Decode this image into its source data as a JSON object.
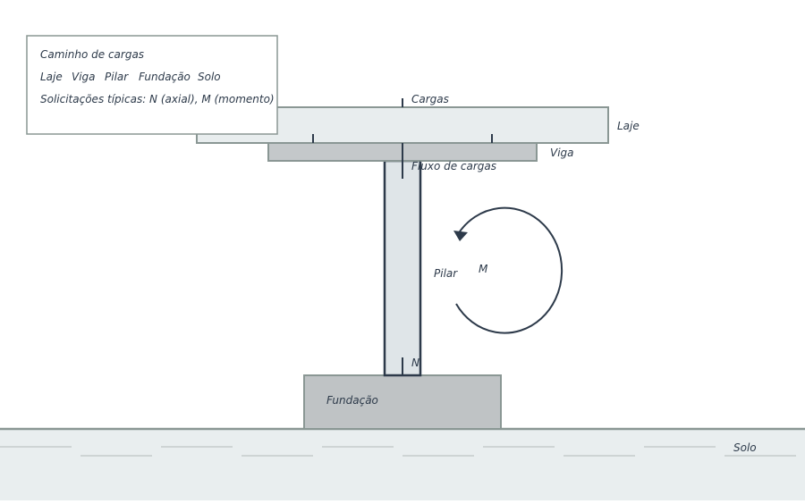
{
  "legend": {
    "title": "Caminho de cargas",
    "items": [
      "Laje",
      "Viga",
      "Pilar",
      "Fundação",
      "Solo"
    ],
    "note": "Solicitações típicas: N (axial), M (momento)"
  },
  "labels": {
    "loads": "Cargas",
    "slab": "Laje",
    "beam": "Viga",
    "load_flow": "Fluxo de cargas",
    "column": "Pilar",
    "moment": "M",
    "axial": "N",
    "foundation": "Fundação",
    "soil": "Solo"
  },
  "colors": {
    "ink": "#2d3a4a",
    "slab_fill": "#e8edee",
    "beam_fill": "#c4c8ca",
    "column_fill": "#dfe5e8",
    "foundation_fill": "#bfc3c5",
    "soil_fill": "#e9eeef",
    "outline_gray": "#8a9794"
  }
}
